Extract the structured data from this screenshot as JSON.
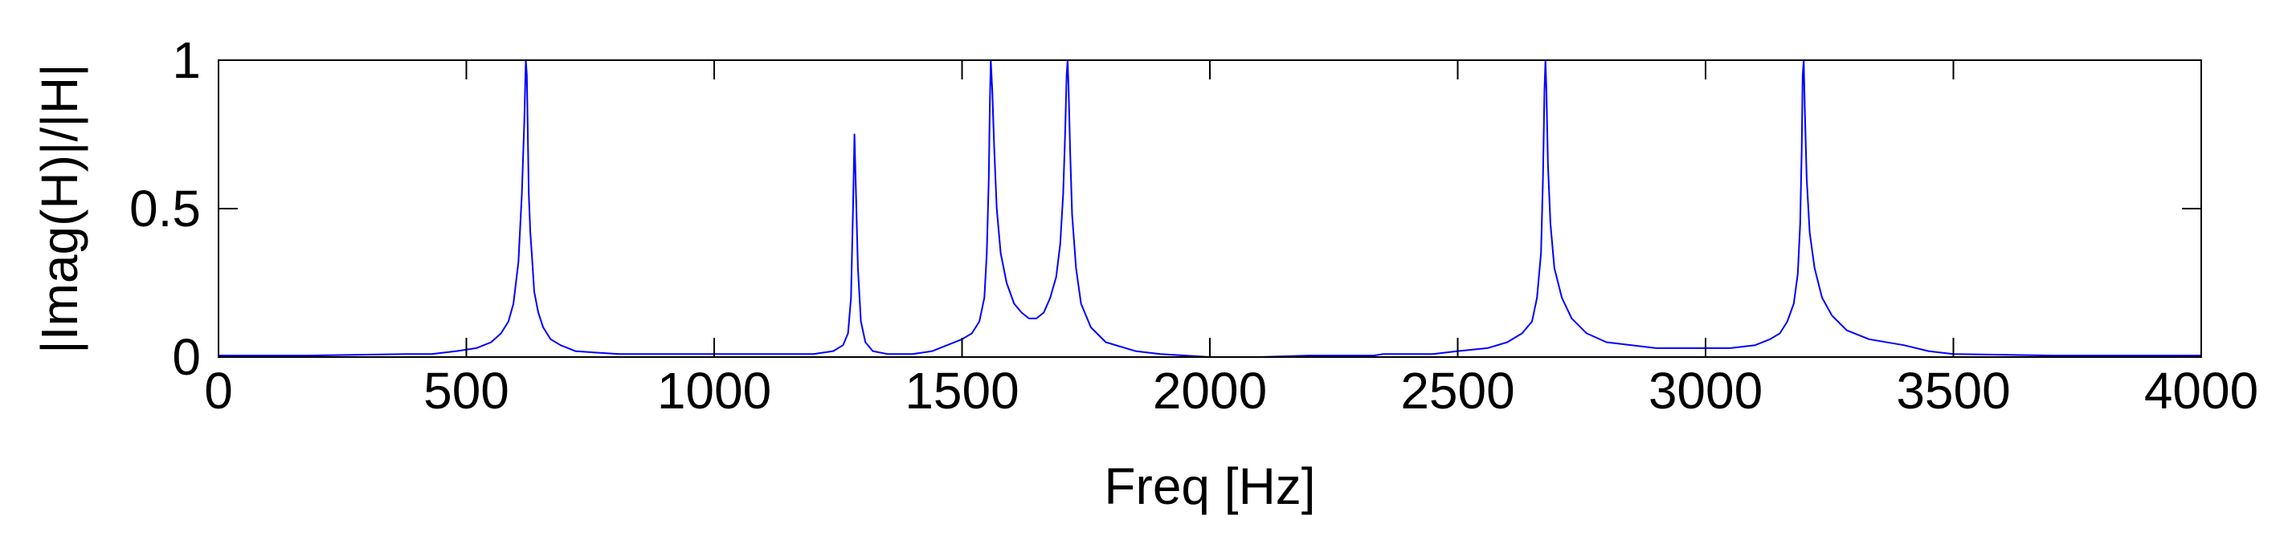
{
  "chart_data": {
    "type": "line",
    "title": "",
    "xlabel": "Freq [Hz]",
    "ylabel": "|Imag(H)|/|H|",
    "xlim": [
      0,
      4000
    ],
    "ylim": [
      0,
      1
    ],
    "x_ticks": [
      0,
      500,
      1000,
      1500,
      2000,
      2500,
      3000,
      3500,
      4000
    ],
    "x_tick_labels": [
      "0",
      "500",
      "1000",
      "1500",
      "2000",
      "2500",
      "3000",
      "3500",
      "4000"
    ],
    "y_ticks": [
      0,
      0.5,
      1
    ],
    "y_tick_labels": [
      "0",
      "0.5",
      "1"
    ],
    "grid": false,
    "box": true,
    "series": [
      {
        "color": "#0000ff",
        "x": [
          0,
          180,
          380,
          430,
          480,
          520,
          550,
          570,
          585,
          595,
          605,
          612,
          617,
          620,
          622,
          624,
          626,
          629,
          632,
          637,
          645,
          655,
          670,
          690,
          720,
          760,
          810,
          860,
          1000,
          1100,
          1200,
          1240,
          1260,
          1270,
          1276,
          1280,
          1283,
          1286,
          1290,
          1296,
          1305,
          1320,
          1350,
          1400,
          1440,
          1470,
          1500,
          1520,
          1535,
          1545,
          1550,
          1554,
          1556,
          1558,
          1561,
          1565,
          1570,
          1578,
          1590,
          1605,
          1620,
          1635,
          1650,
          1665,
          1678,
          1690,
          1698,
          1704,
          1708,
          1711,
          1713,
          1715,
          1718,
          1722,
          1730,
          1740,
          1760,
          1790,
          1850,
          1900,
          1950,
          2000,
          2100,
          2200,
          2330,
          2350,
          2450,
          2500,
          2560,
          2600,
          2630,
          2650,
          2660,
          2668,
          2672,
          2675,
          2677,
          2679,
          2682,
          2687,
          2695,
          2710,
          2730,
          2760,
          2800,
          2900,
          3000,
          3050,
          3100,
          3130,
          3150,
          3165,
          3178,
          3186,
          3191,
          3194,
          3196,
          3198,
          3200,
          3204,
          3210,
          3220,
          3235,
          3255,
          3285,
          3330,
          3400,
          3450,
          3500,
          3700,
          3900,
          4000
        ],
        "y": [
          0.005,
          0.005,
          0.01,
          0.01,
          0.02,
          0.03,
          0.05,
          0.08,
          0.12,
          0.18,
          0.32,
          0.55,
          0.8,
          1.0,
          0.95,
          0.75,
          0.55,
          0.42,
          0.35,
          0.22,
          0.15,
          0.1,
          0.06,
          0.04,
          0.02,
          0.015,
          0.01,
          0.01,
          0.01,
          0.01,
          0.01,
          0.02,
          0.04,
          0.08,
          0.2,
          0.5,
          0.75,
          0.55,
          0.3,
          0.12,
          0.05,
          0.02,
          0.01,
          0.01,
          0.02,
          0.04,
          0.06,
          0.08,
          0.12,
          0.2,
          0.35,
          0.6,
          0.85,
          1.0,
          0.9,
          0.7,
          0.5,
          0.35,
          0.25,
          0.18,
          0.15,
          0.13,
          0.13,
          0.15,
          0.2,
          0.27,
          0.38,
          0.55,
          0.75,
          0.95,
          1.0,
          0.9,
          0.7,
          0.48,
          0.3,
          0.18,
          0.1,
          0.05,
          0.02,
          0.01,
          0.005,
          0.0,
          0.0,
          0.005,
          0.005,
          0.01,
          0.01,
          0.02,
          0.03,
          0.05,
          0.08,
          0.12,
          0.2,
          0.35,
          0.6,
          0.9,
          1.0,
          0.9,
          0.65,
          0.45,
          0.3,
          0.2,
          0.13,
          0.08,
          0.05,
          0.03,
          0.03,
          0.03,
          0.04,
          0.06,
          0.08,
          0.12,
          0.18,
          0.28,
          0.45,
          0.7,
          0.95,
          1.0,
          0.85,
          0.6,
          0.42,
          0.3,
          0.2,
          0.14,
          0.09,
          0.06,
          0.04,
          0.02,
          0.01,
          0.005,
          0.005,
          0.005
        ]
      }
    ]
  }
}
